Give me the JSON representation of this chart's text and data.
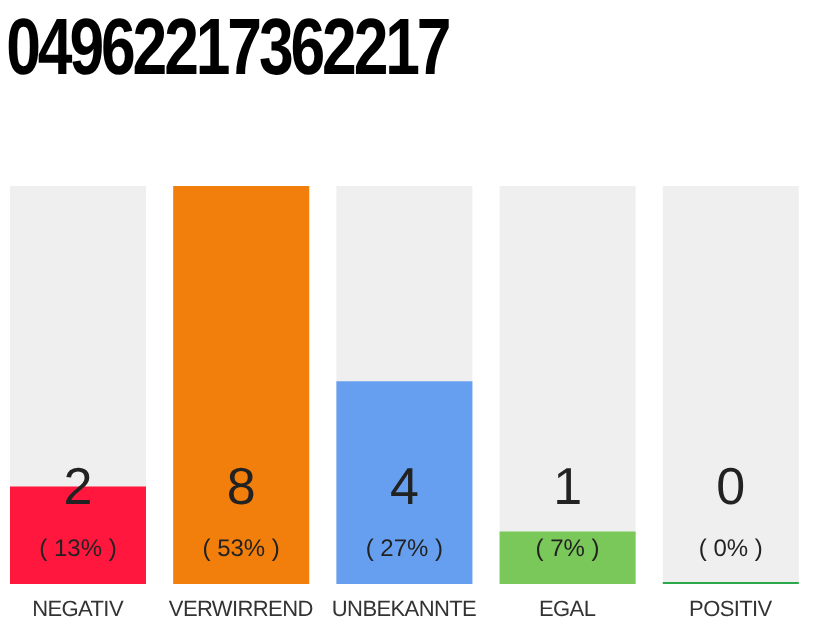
{
  "chart_data": {
    "type": "bar",
    "title": "04962217362217",
    "categories": [
      "NEGATIV",
      "VERWIRREND",
      "UNBEKANNTE",
      "EGAL",
      "POSITIV"
    ],
    "values": [
      13,
      53,
      27,
      7,
      0
    ],
    "colors": [
      "#ff173d",
      "#f27e0b",
      "#679ff0",
      "#7bc85a",
      "#2aa84a"
    ],
    "value_labels": [
      "2\n( 13% )",
      "8\n( 53% )",
      "4\n( 27% )",
      "1\n( 7% )",
      "0\n( 0% )"
    ]
  }
}
